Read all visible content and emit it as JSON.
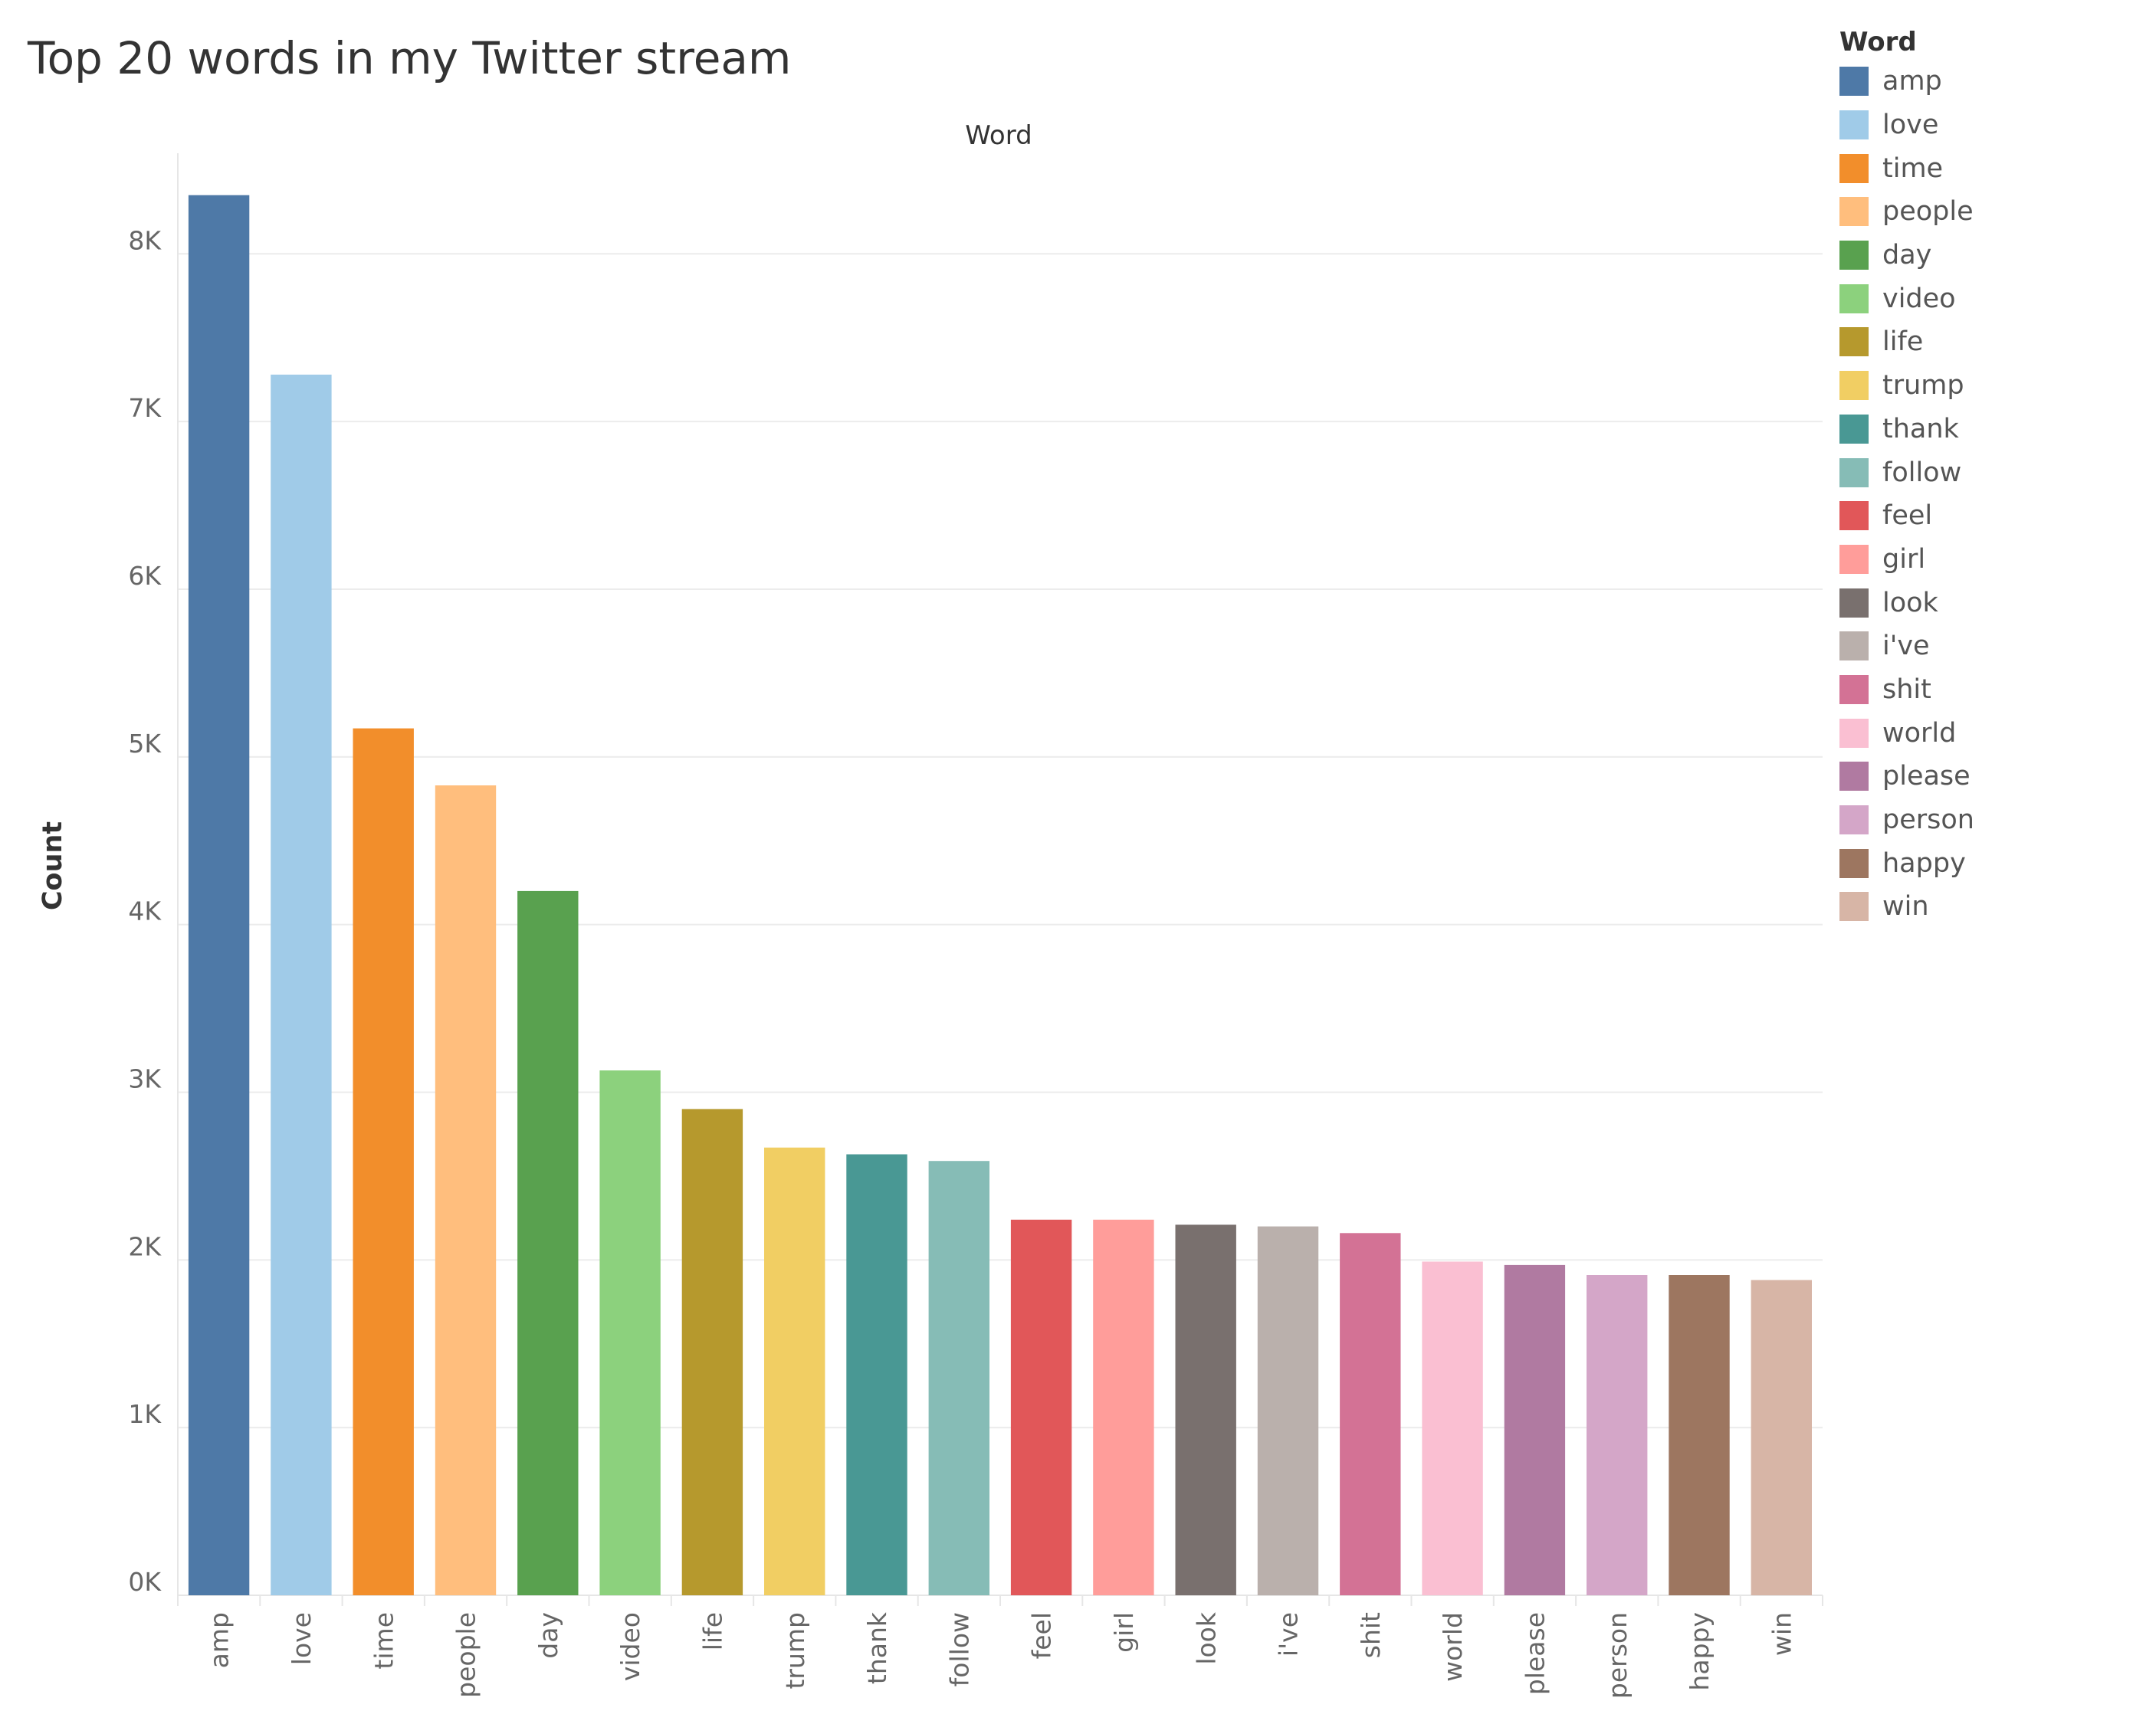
{
  "chart_data": {
    "type": "bar",
    "title": "Top 20 words in my Twitter stream",
    "column_header": "Word",
    "ylabel": "Count",
    "ylim": [
      0,
      8600
    ],
    "yticks": [
      0,
      1000,
      2000,
      3000,
      4000,
      5000,
      6000,
      7000,
      8000
    ],
    "ytick_labels": [
      "0K",
      "1K",
      "2K",
      "3K",
      "4K",
      "5K",
      "6K",
      "7K",
      "8K"
    ],
    "grid": true,
    "legend": {
      "title": "Word",
      "placement": "right"
    },
    "categories": [
      "amp",
      "love",
      "time",
      "people",
      "day",
      "video",
      "life",
      "trump",
      "thank",
      "follow",
      "feel",
      "girl",
      "look",
      "i've",
      "shit",
      "world",
      "please",
      "person",
      "happy",
      "win"
    ],
    "values": [
      8350,
      7280,
      5170,
      4830,
      4200,
      3130,
      2900,
      2670,
      2630,
      2590,
      2240,
      2240,
      2210,
      2200,
      2160,
      1990,
      1970,
      1910,
      1910,
      1880
    ],
    "colors": [
      "#4e79a7",
      "#a0cbe8",
      "#f28e2b",
      "#ffbe7d",
      "#59a14f",
      "#8cd17d",
      "#b6992d",
      "#f1ce63",
      "#499894",
      "#86bcb6",
      "#e15759",
      "#ff9d9a",
      "#79706e",
      "#bab0ac",
      "#d37295",
      "#fabfd2",
      "#b07aa1",
      "#d4a6c8",
      "#9d7660",
      "#d7b5a6"
    ]
  }
}
